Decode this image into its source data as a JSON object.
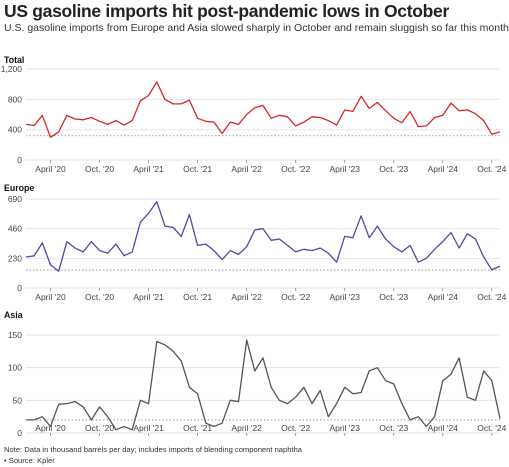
{
  "title": "US gasoline imports hit post-pandemic lows in October",
  "subtitle": "U.S. gasoline imports from Europe and Asia slowed sharply in October and remain sluggish so far this month",
  "note": "Note: Data in thousand barrels per day; includes imports of blending component naphtha",
  "source": "• Source: Kpler",
  "chart_data": [
    {
      "type": "line",
      "title": "Total",
      "color": "#d62728",
      "x": [
        "2020-01",
        "2020-02",
        "2020-03",
        "2020-04",
        "2020-05",
        "2020-06",
        "2020-07",
        "2020-08",
        "2020-09",
        "2020-10",
        "2020-11",
        "2020-12",
        "2021-01",
        "2021-02",
        "2021-03",
        "2021-04",
        "2021-05",
        "2021-06",
        "2021-07",
        "2021-08",
        "2021-09",
        "2021-10",
        "2021-11",
        "2021-12",
        "2022-01",
        "2022-02",
        "2022-03",
        "2022-04",
        "2022-05",
        "2022-06",
        "2022-07",
        "2022-08",
        "2022-09",
        "2022-10",
        "2022-11",
        "2022-12",
        "2023-01",
        "2023-02",
        "2023-03",
        "2023-04",
        "2023-05",
        "2023-06",
        "2023-07",
        "2023-08",
        "2023-09",
        "2023-10",
        "2023-11",
        "2023-12",
        "2024-01",
        "2024-02",
        "2024-03",
        "2024-04",
        "2024-05",
        "2024-06",
        "2024-07",
        "2024-08",
        "2024-09",
        "2024-10",
        "2024-11"
      ],
      "values": [
        470,
        455,
        590,
        300,
        370,
        590,
        540,
        530,
        560,
        510,
        470,
        520,
        460,
        520,
        780,
        850,
        1030,
        800,
        740,
        740,
        790,
        550,
        510,
        500,
        350,
        500,
        470,
        600,
        690,
        720,
        550,
        590,
        570,
        450,
        500,
        570,
        560,
        520,
        460,
        660,
        640,
        840,
        680,
        760,
        650,
        550,
        490,
        640,
        440,
        450,
        560,
        590,
        750,
        650,
        660,
        610,
        520,
        340,
        370
      ],
      "ytick_labels": [
        "1,200",
        "800",
        "400",
        "0"
      ],
      "ylim": [
        0,
        1200
      ],
      "yticks": [
        1200,
        800,
        400,
        0
      ],
      "average": 320
    },
    {
      "type": "line",
      "title": "Europe",
      "color": "#5546a8",
      "x": [
        "2020-01",
        "2020-02",
        "2020-03",
        "2020-04",
        "2020-05",
        "2020-06",
        "2020-07",
        "2020-08",
        "2020-09",
        "2020-10",
        "2020-11",
        "2020-12",
        "2021-01",
        "2021-02",
        "2021-03",
        "2021-04",
        "2021-05",
        "2021-06",
        "2021-07",
        "2021-08",
        "2021-09",
        "2021-10",
        "2021-11",
        "2021-12",
        "2022-01",
        "2022-02",
        "2022-03",
        "2022-04",
        "2022-05",
        "2022-06",
        "2022-07",
        "2022-08",
        "2022-09",
        "2022-10",
        "2022-11",
        "2022-12",
        "2023-01",
        "2023-02",
        "2023-03",
        "2023-04",
        "2023-05",
        "2023-06",
        "2023-07",
        "2023-08",
        "2023-09",
        "2023-10",
        "2023-11",
        "2023-12",
        "2024-01",
        "2024-02",
        "2024-03",
        "2024-04",
        "2024-05",
        "2024-06",
        "2024-07",
        "2024-08",
        "2024-09",
        "2024-10",
        "2024-11"
      ],
      "values": [
        240,
        250,
        350,
        180,
        130,
        360,
        310,
        280,
        360,
        290,
        270,
        340,
        250,
        280,
        510,
        580,
        670,
        480,
        470,
        400,
        570,
        330,
        340,
        290,
        220,
        290,
        260,
        320,
        450,
        460,
        370,
        380,
        330,
        280,
        300,
        290,
        310,
        270,
        200,
        400,
        390,
        560,
        390,
        480,
        380,
        320,
        280,
        330,
        200,
        230,
        300,
        360,
        430,
        310,
        420,
        380,
        240,
        140,
        170
      ],
      "ytick_labels": [
        "690",
        "460",
        "230",
        "0"
      ],
      "ylim": [
        0,
        690
      ],
      "yticks": [
        690,
        460,
        230,
        0
      ],
      "average": 140
    },
    {
      "type": "line",
      "title": "Asia",
      "color": "#555555",
      "x": [
        "2020-01",
        "2020-02",
        "2020-03",
        "2020-04",
        "2020-05",
        "2020-06",
        "2020-07",
        "2020-08",
        "2020-09",
        "2020-10",
        "2020-11",
        "2020-12",
        "2021-01",
        "2021-02",
        "2021-03",
        "2021-04",
        "2021-05",
        "2021-06",
        "2021-07",
        "2021-08",
        "2021-09",
        "2021-10",
        "2021-11",
        "2021-12",
        "2022-01",
        "2022-02",
        "2022-03",
        "2022-04",
        "2022-05",
        "2022-06",
        "2022-07",
        "2022-08",
        "2022-09",
        "2022-10",
        "2022-11",
        "2022-12",
        "2023-01",
        "2023-02",
        "2023-03",
        "2023-04",
        "2023-05",
        "2023-06",
        "2023-07",
        "2023-08",
        "2023-09",
        "2023-10",
        "2023-11",
        "2023-12",
        "2024-01",
        "2024-02",
        "2024-03",
        "2024-04",
        "2024-05",
        "2024-06",
        "2024-07",
        "2024-08",
        "2024-09",
        "2024-10",
        "2024-11"
      ],
      "values": [
        20,
        20,
        25,
        10,
        44,
        45,
        48,
        40,
        20,
        40,
        25,
        5,
        10,
        5,
        50,
        45,
        140,
        135,
        125,
        110,
        70,
        60,
        15,
        10,
        15,
        50,
        48,
        142,
        95,
        115,
        70,
        50,
        45,
        55,
        70,
        45,
        65,
        25,
        45,
        70,
        60,
        62,
        95,
        100,
        80,
        75,
        45,
        20,
        25,
        10,
        25,
        80,
        90,
        115,
        55,
        50,
        95,
        80,
        22
      ],
      "ytick_labels": [
        "150",
        "100",
        "50",
        "0"
      ],
      "ylim": [
        0,
        150
      ],
      "yticks": [
        150,
        100,
        50,
        0
      ],
      "average": 20
    }
  ],
  "xtick_labels": [
    "April '20",
    "Oct. '20",
    "April '21",
    "Oct. '21",
    "April '22",
    "Oct. '22",
    "April '23",
    "Oct. '23",
    "April '24",
    "Oct. '24"
  ],
  "xtick_dates": [
    "2020-04",
    "2020-10",
    "2021-04",
    "2021-10",
    "2022-04",
    "2022-10",
    "2023-04",
    "2023-10",
    "2024-04",
    "2024-10"
  ]
}
